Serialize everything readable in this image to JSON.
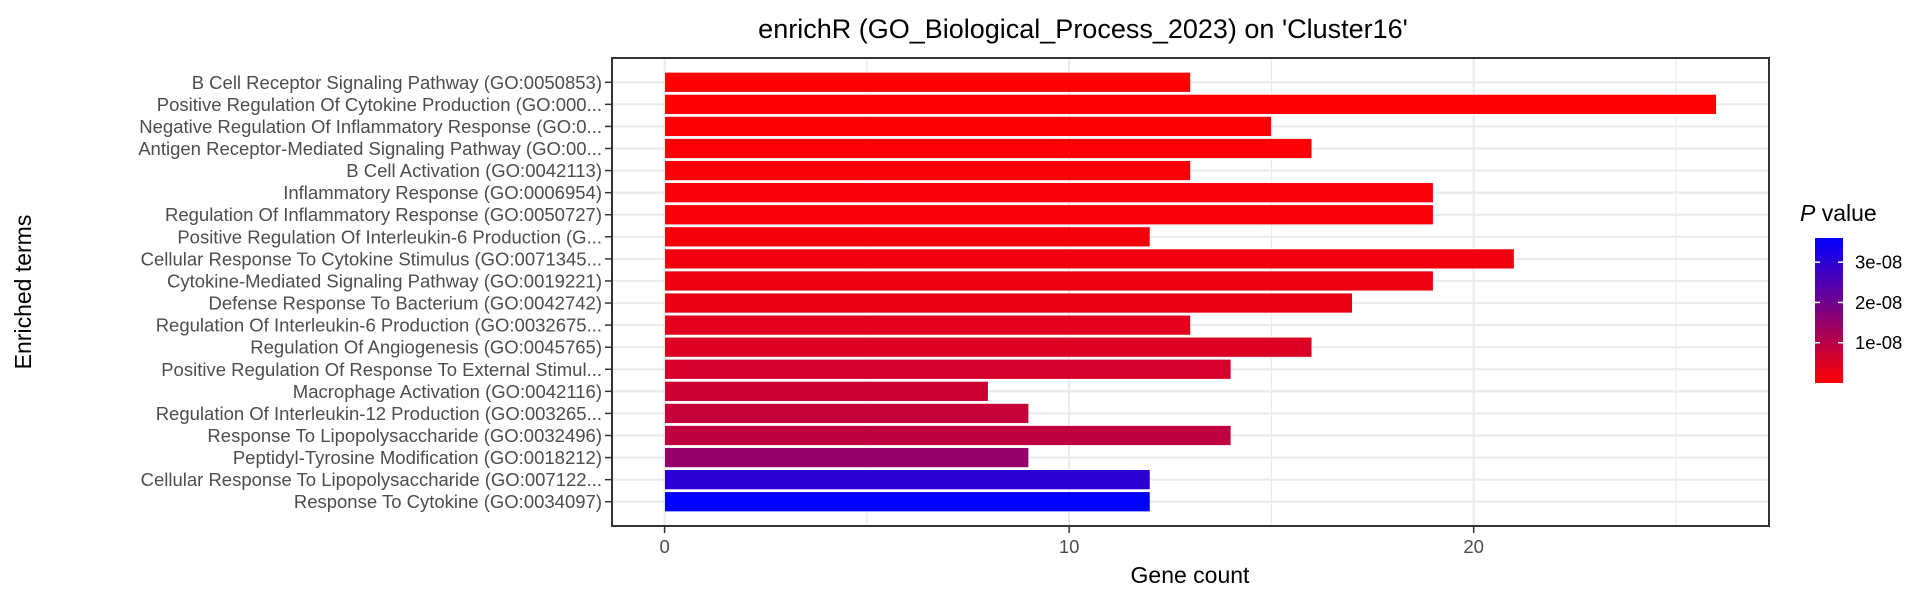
{
  "chart_data": {
    "type": "bar",
    "orientation": "horizontal",
    "title": "enrichR (GO_Biological_Process_2023) on 'Cluster16'",
    "xlabel": "Gene count",
    "ylabel": "Enriched terms",
    "xlim": [
      -1.3,
      27.3
    ],
    "xticks": [
      0,
      10,
      20
    ],
    "grid": true,
    "legend": {
      "title_italic": "P",
      "title_rest": " value",
      "placement": "right",
      "low_color": "#ff0000",
      "high_color": "#0000ff",
      "range": [
        0,
        3.6e-08
      ],
      "ticks": [
        {
          "value": 1e-08,
          "label": "1e-08"
        },
        {
          "value": 2e-08,
          "label": "2e-08"
        },
        {
          "value": 3e-08,
          "label": "3e-08"
        }
      ]
    },
    "categories": [
      "B Cell Receptor Signaling Pathway (GO:0050853)",
      "Positive Regulation Of Cytokine Production (GO:000...",
      "Negative Regulation Of Inflammatory Response (GO:0...",
      "Antigen Receptor-Mediated Signaling Pathway (GO:00...",
      "B Cell Activation (GO:0042113)",
      "Inflammatory Response (GO:0006954)",
      "Regulation Of Inflammatory Response (GO:0050727)",
      "Positive Regulation Of Interleukin-6 Production (G...",
      "Cellular Response To Cytokine Stimulus (GO:0071345...",
      "Cytokine-Mediated Signaling Pathway (GO:0019221)",
      "Defense Response To Bacterium (GO:0042742)",
      "Regulation Of Interleukin-6 Production (GO:0032675...",
      "Regulation Of Angiogenesis (GO:0045765)",
      "Positive Regulation Of Response To External Stimul...",
      "Macrophage Activation (GO:0042116)",
      "Regulation Of Interleukin-12 Production (GO:003265...",
      "Response To Lipopolysaccharide (GO:0032496)",
      "Peptidyl-Tyrosine Modification (GO:0018212)",
      "Cellular Response To Lipopolysaccharide (GO:007122...",
      "Response To Cytokine (GO:0034097)"
    ],
    "values": [
      13,
      26,
      15,
      16,
      13,
      19,
      19,
      12,
      21,
      19,
      17,
      13,
      16,
      14,
      8,
      9,
      14,
      9,
      12,
      12
    ],
    "p_values": [
      1e-10,
      2e-10,
      4e-10,
      6e-10,
      8e-10,
      1e-09,
      1.2e-09,
      1.5e-09,
      2e-09,
      2.5e-09,
      3e-09,
      4e-09,
      5e-09,
      6e-09,
      7e-09,
      8e-09,
      9e-09,
      1.5e-08,
      3e-08,
      3.6e-08
    ]
  }
}
